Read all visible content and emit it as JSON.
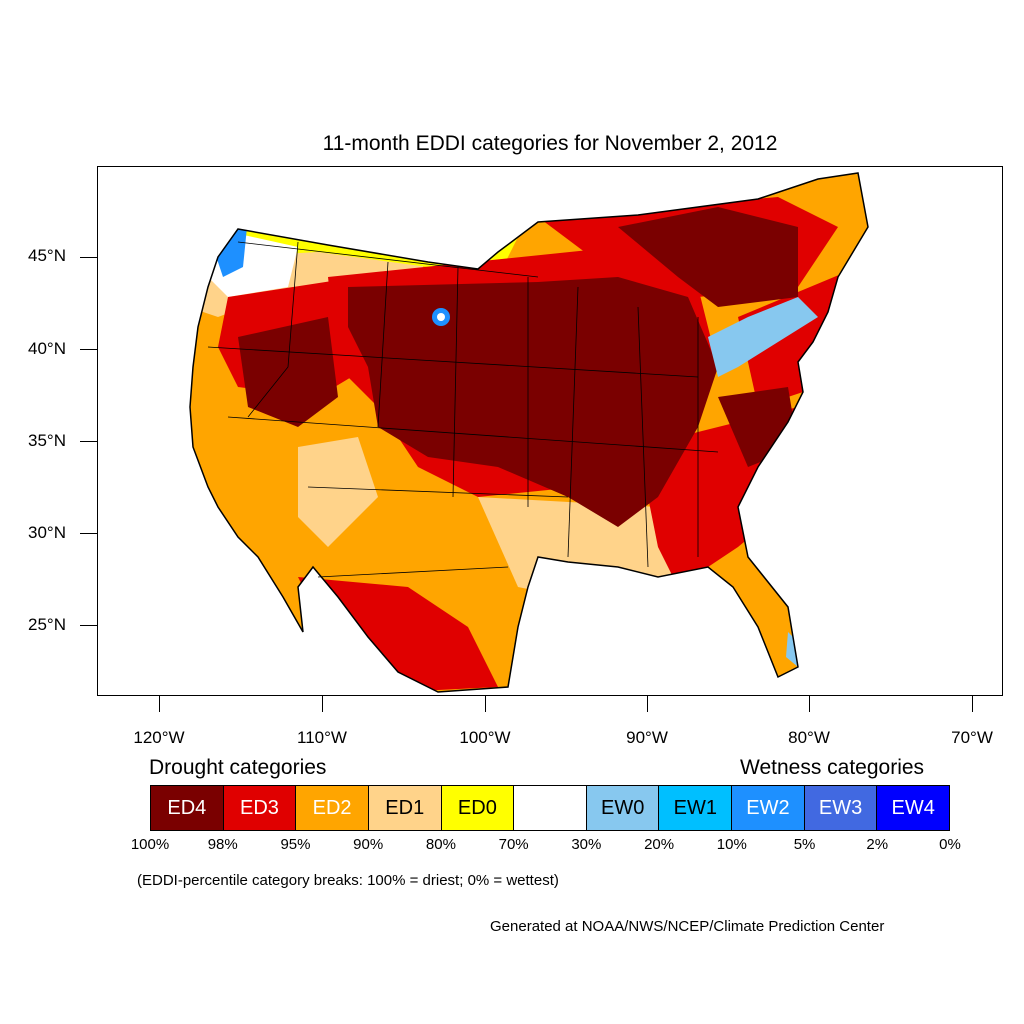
{
  "title": "11-month EDDI categories for November 2, 2012",
  "lat_labels": [
    "45°N",
    "40°N",
    "35°N",
    "30°N",
    "25°N"
  ],
  "lon_labels": [
    "120°W",
    "110°W",
    "100°W",
    "90°W",
    "80°W",
    "70°W"
  ],
  "legend": {
    "drought_heading": "Drought categories",
    "wetness_heading": "Wetness categories",
    "categories": [
      {
        "label": "ED4",
        "color": "#7a0000",
        "text_color": "#ffffff"
      },
      {
        "label": "ED3",
        "color": "#e00000",
        "text_color": "#ffffff"
      },
      {
        "label": "ED2",
        "color": "#ffa500",
        "text_color": "#ffffff"
      },
      {
        "label": "ED1",
        "color": "#ffd38a",
        "text_color": "#000000"
      },
      {
        "label": "ED0",
        "color": "#ffff00",
        "text_color": "#000000"
      },
      {
        "label": "",
        "color": "#ffffff",
        "text_color": "#000000"
      },
      {
        "label": "EW0",
        "color": "#87c8ef",
        "text_color": "#000000"
      },
      {
        "label": "EW1",
        "color": "#00bfff",
        "text_color": "#000000"
      },
      {
        "label": "EW2",
        "color": "#1e90ff",
        "text_color": "#ffffff"
      },
      {
        "label": "EW3",
        "color": "#4169e1",
        "text_color": "#ffffff"
      },
      {
        "label": "EW4",
        "color": "#0000ff",
        "text_color": "#ffffff"
      }
    ],
    "percentile_breaks": [
      "100%",
      "98%",
      "95%",
      "90%",
      "80%",
      "70%",
      "30%",
      "20%",
      "10%",
      "5%",
      "2%",
      "0%"
    ]
  },
  "note": "(EDDI-percentile category breaks: 100% = driest; 0% = wettest)",
  "credit": "Generated at NOAA/NWS/NCEP/Climate Prediction Center"
}
